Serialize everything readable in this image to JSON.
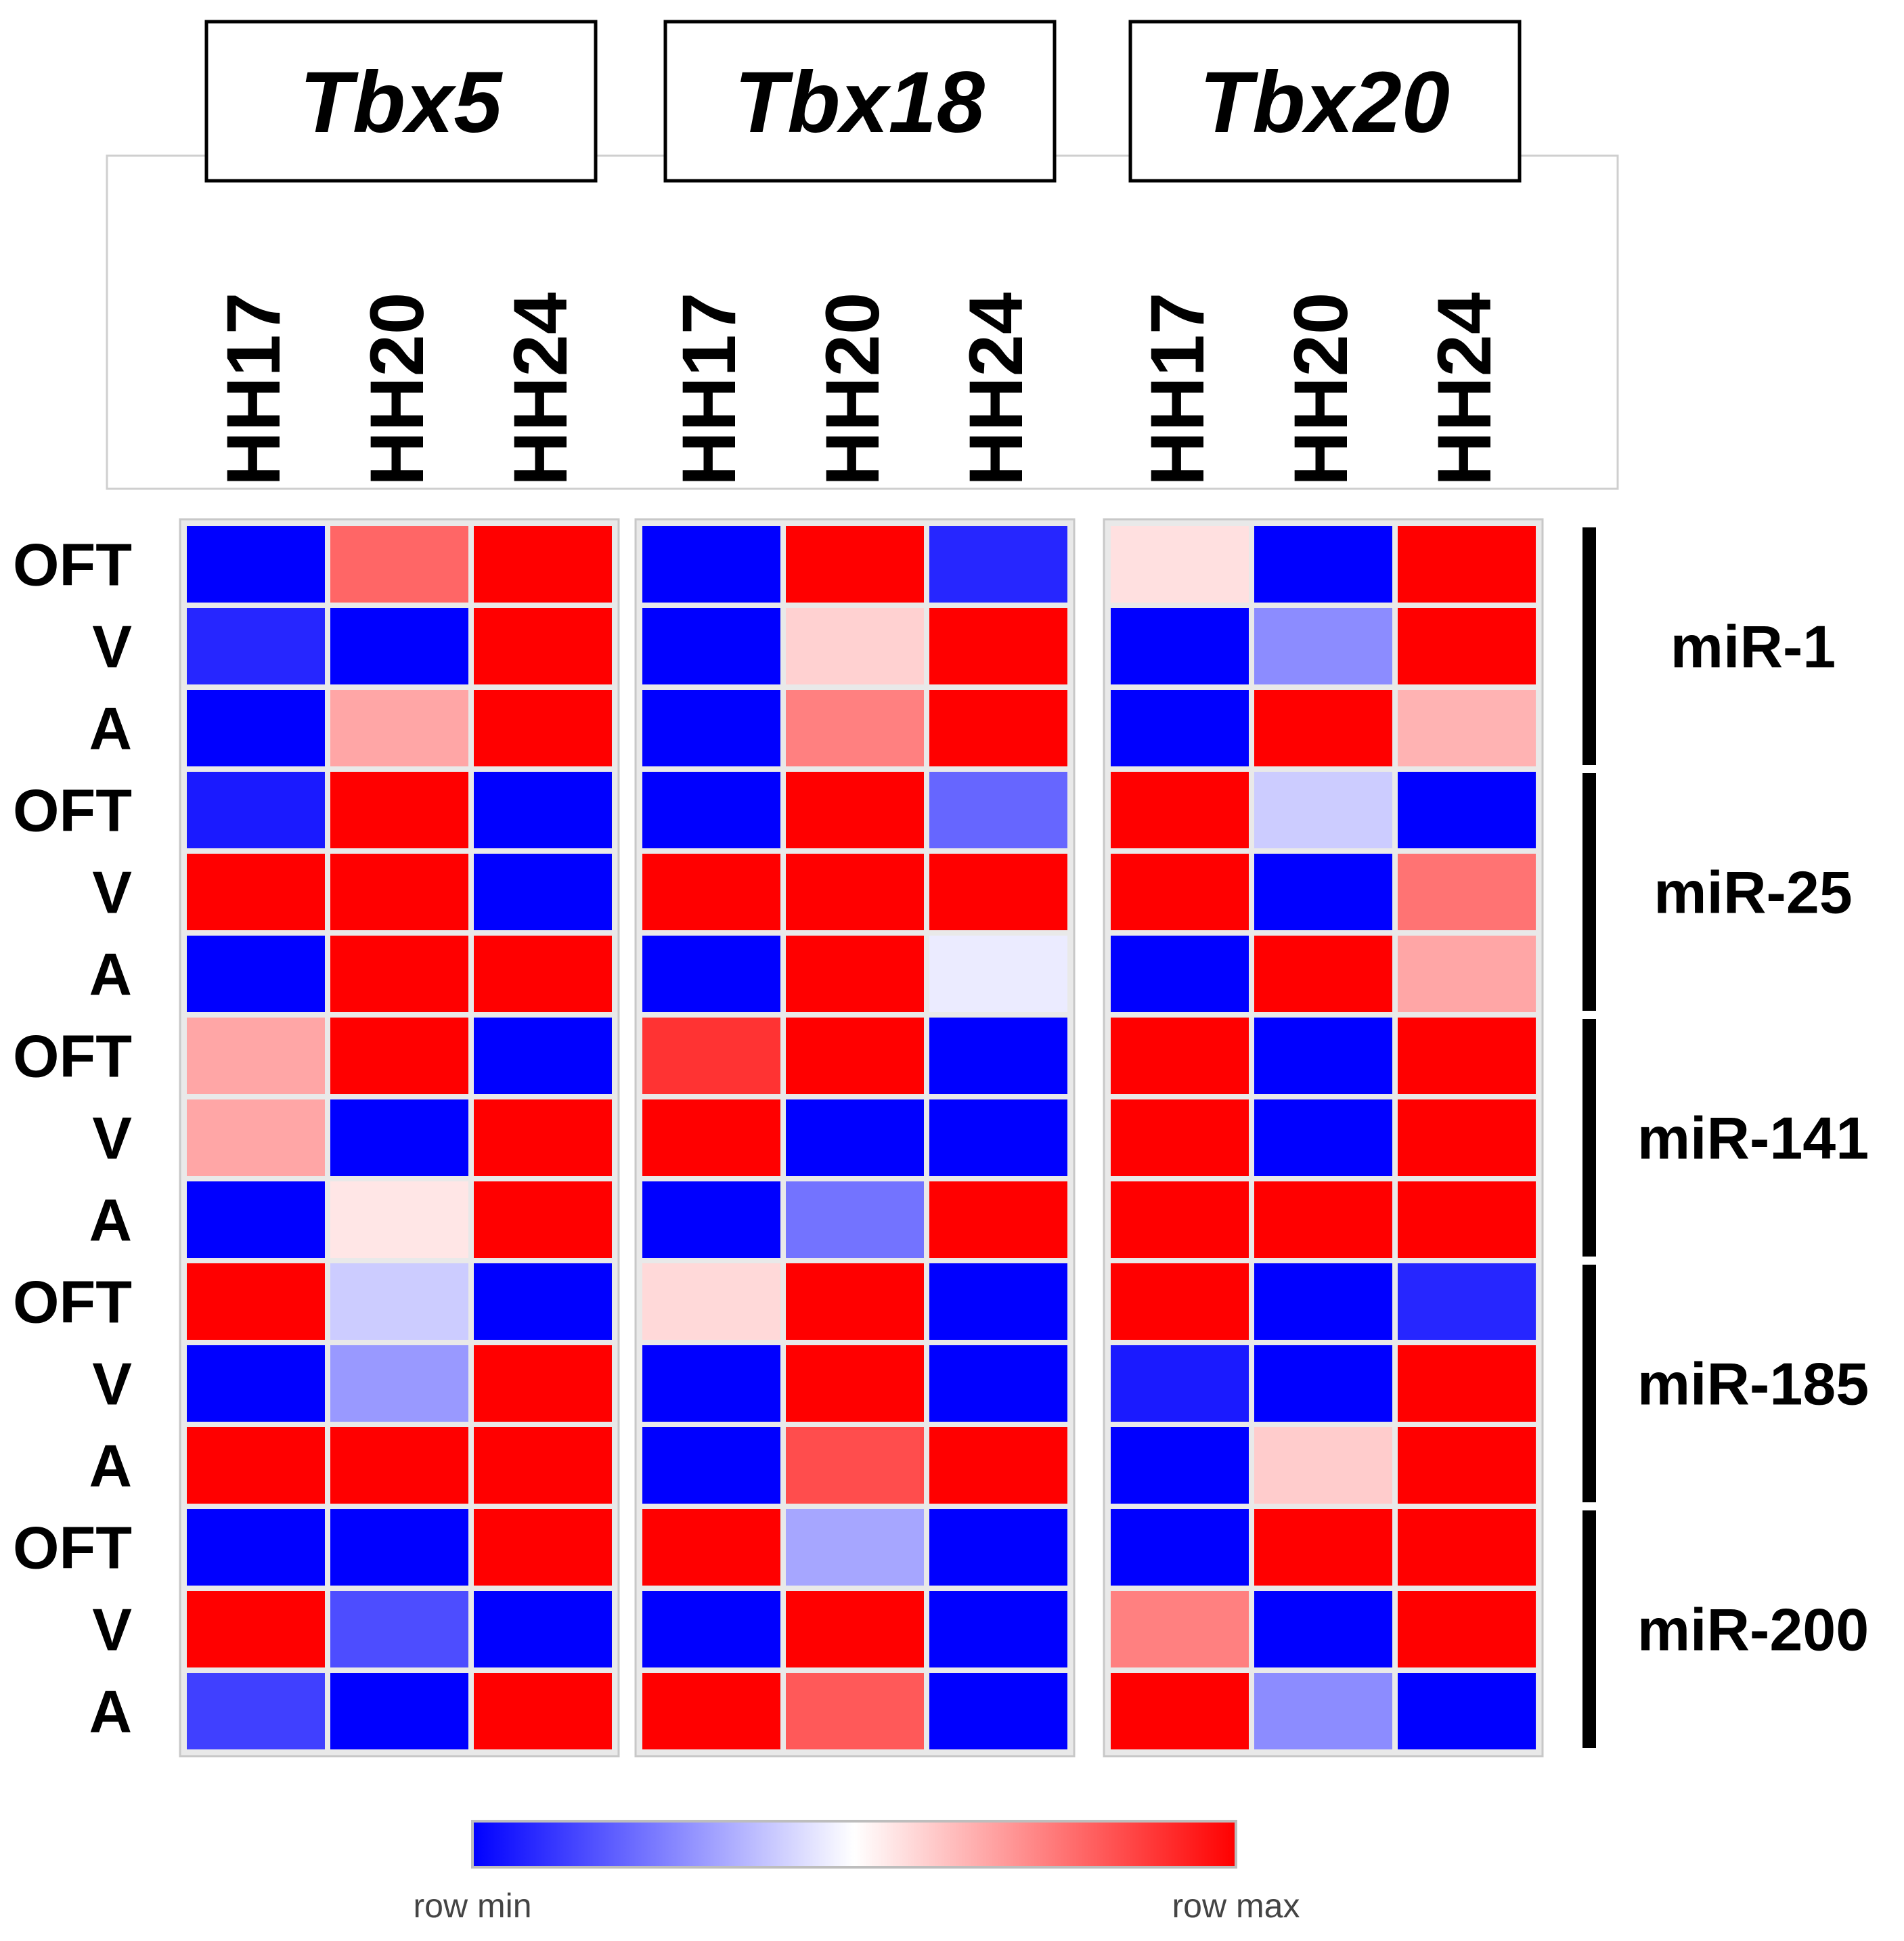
{
  "chart_data": {
    "type": "heatmap",
    "panels": [
      "Tbx5",
      "Tbx18",
      "Tbx20"
    ],
    "columns": [
      "HH17",
      "HH20",
      "HH24"
    ],
    "row_labels": [
      "OFT",
      "V",
      "A",
      "OFT",
      "V",
      "A",
      "OFT",
      "V",
      "A",
      "OFT",
      "V",
      "A",
      "OFT",
      "V",
      "A"
    ],
    "groups": [
      {
        "name": "miR-1",
        "rows": [
          0,
          2
        ]
      },
      {
        "name": "miR-25",
        "rows": [
          3,
          5
        ]
      },
      {
        "name": "miR-141",
        "rows": [
          6,
          8
        ]
      },
      {
        "name": "miR-185",
        "rows": [
          9,
          11
        ]
      },
      {
        "name": "miR-200",
        "rows": [
          12,
          14
        ]
      }
    ],
    "scale": {
      "min_label": "row min",
      "max_label": "row max",
      "min_color": "#0000ff",
      "mid_color": "#ffffff",
      "max_color": "#ff0000",
      "range": [
        -1,
        1
      ]
    },
    "values": [
      [
        [
          -1.0,
          0.6,
          1.0
        ],
        [
          -1.0,
          1.0,
          -0.85
        ],
        [
          0.12,
          -1.0,
          1.0
        ]
      ],
      [
        [
          -0.85,
          -1.0,
          1.0
        ],
        [
          -1.0,
          0.18,
          1.0
        ],
        [
          -1.0,
          -0.45,
          1.0
        ]
      ],
      [
        [
          -1.0,
          0.35,
          1.0
        ],
        [
          -1.0,
          0.5,
          1.0
        ],
        [
          -1.0,
          1.0,
          0.3
        ]
      ],
      [
        [
          -0.9,
          1.0,
          -1.0
        ],
        [
          -1.0,
          1.0,
          -0.6
        ],
        [
          1.0,
          -0.2,
          -1.0
        ]
      ],
      [
        [
          1.0,
          1.0,
          -1.0
        ],
        [
          1.0,
          1.0,
          1.0
        ],
        [
          1.0,
          -1.0,
          0.55
        ]
      ],
      [
        [
          -1.0,
          1.0,
          1.0
        ],
        [
          -1.0,
          1.0,
          -0.08
        ],
        [
          -1.0,
          1.0,
          0.35
        ]
      ],
      [
        [
          0.35,
          1.0,
          -1.0
        ],
        [
          0.8,
          1.0,
          -1.0
        ],
        [
          1.0,
          -1.0,
          1.0
        ]
      ],
      [
        [
          0.35,
          -1.0,
          1.0
        ],
        [
          1.0,
          -1.0,
          -1.0
        ],
        [
          1.0,
          -1.0,
          1.0
        ]
      ],
      [
        [
          -1.0,
          0.1,
          1.0
        ],
        [
          -1.0,
          -0.55,
          1.0
        ],
        [
          1.0,
          1.0,
          1.0
        ]
      ],
      [
        [
          1.0,
          -0.2,
          -1.0
        ],
        [
          0.15,
          1.0,
          -1.0
        ],
        [
          1.0,
          -1.0,
          -0.85
        ]
      ],
      [
        [
          -1.0,
          -0.4,
          1.0
        ],
        [
          -1.0,
          1.0,
          -1.0
        ],
        [
          -0.9,
          -1.0,
          1.0
        ]
      ],
      [
        [
          1.0,
          1.0,
          1.0
        ],
        [
          -1.0,
          0.7,
          1.0
        ],
        [
          -1.0,
          0.2,
          1.0
        ]
      ],
      [
        [
          -1.0,
          -1.0,
          1.0
        ],
        [
          1.0,
          -0.35,
          -1.0
        ],
        [
          -1.0,
          1.0,
          1.0
        ]
      ],
      [
        [
          1.0,
          -0.7,
          -1.0
        ],
        [
          -1.0,
          1.0,
          -1.0
        ],
        [
          0.5,
          -1.0,
          1.0
        ]
      ],
      [
        [
          -0.75,
          -1.0,
          1.0
        ],
        [
          1.0,
          0.65,
          -1.0
        ],
        [
          1.0,
          -0.45,
          -1.0
        ]
      ]
    ]
  }
}
